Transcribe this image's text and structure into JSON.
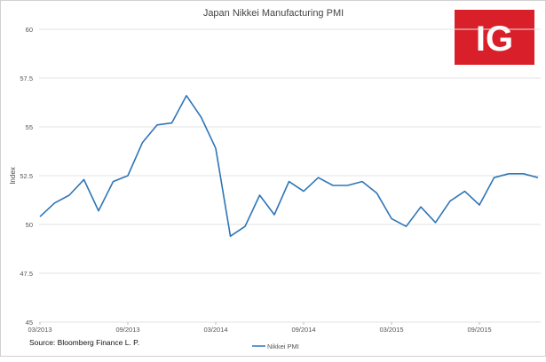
{
  "chart_data": {
    "type": "line",
    "title": "Japan Nikkei Manufacturing PMI",
    "xlabel": "",
    "ylabel": "Index",
    "ylim": [
      45,
      60
    ],
    "yticks": [
      "45",
      "47.5",
      "50",
      "52.5",
      "55",
      "57.5",
      "60"
    ],
    "xticks": [
      "03/2013",
      "09/2013",
      "03/2014",
      "09/2014",
      "03/2015",
      "09/2015"
    ],
    "grid": "horizontal",
    "legend_position": "bottom-center",
    "series": [
      {
        "name": "Nikkei PMI",
        "color": "#2e75b6",
        "x": [
          "03/2013",
          "04/2013",
          "05/2013",
          "06/2013",
          "07/2013",
          "08/2013",
          "09/2013",
          "10/2013",
          "11/2013",
          "12/2013",
          "01/2014",
          "02/2014",
          "03/2014",
          "04/2014",
          "05/2014",
          "06/2014",
          "07/2014",
          "08/2014",
          "09/2014",
          "10/2014",
          "11/2014",
          "12/2014",
          "01/2015",
          "02/2015",
          "03/2015",
          "04/2015",
          "05/2015",
          "06/2015",
          "07/2015",
          "08/2015",
          "09/2015",
          "10/2015",
          "11/2015",
          "12/2015",
          "01/2016"
        ],
        "values": [
          50.4,
          51.1,
          51.5,
          52.3,
          50.7,
          52.2,
          52.5,
          54.2,
          55.1,
          55.2,
          56.6,
          55.5,
          53.9,
          49.4,
          49.9,
          51.5,
          50.5,
          52.2,
          51.7,
          52.4,
          52.0,
          52.0,
          52.2,
          51.6,
          50.3,
          49.9,
          50.9,
          50.1,
          51.2,
          51.7,
          51.0,
          52.4,
          52.6,
          52.6,
          52.4
        ]
      }
    ]
  },
  "source_text": "Source: Bloomberg Finance L. P.",
  "logo": {
    "text": "IG",
    "color": "#d9202a"
  }
}
